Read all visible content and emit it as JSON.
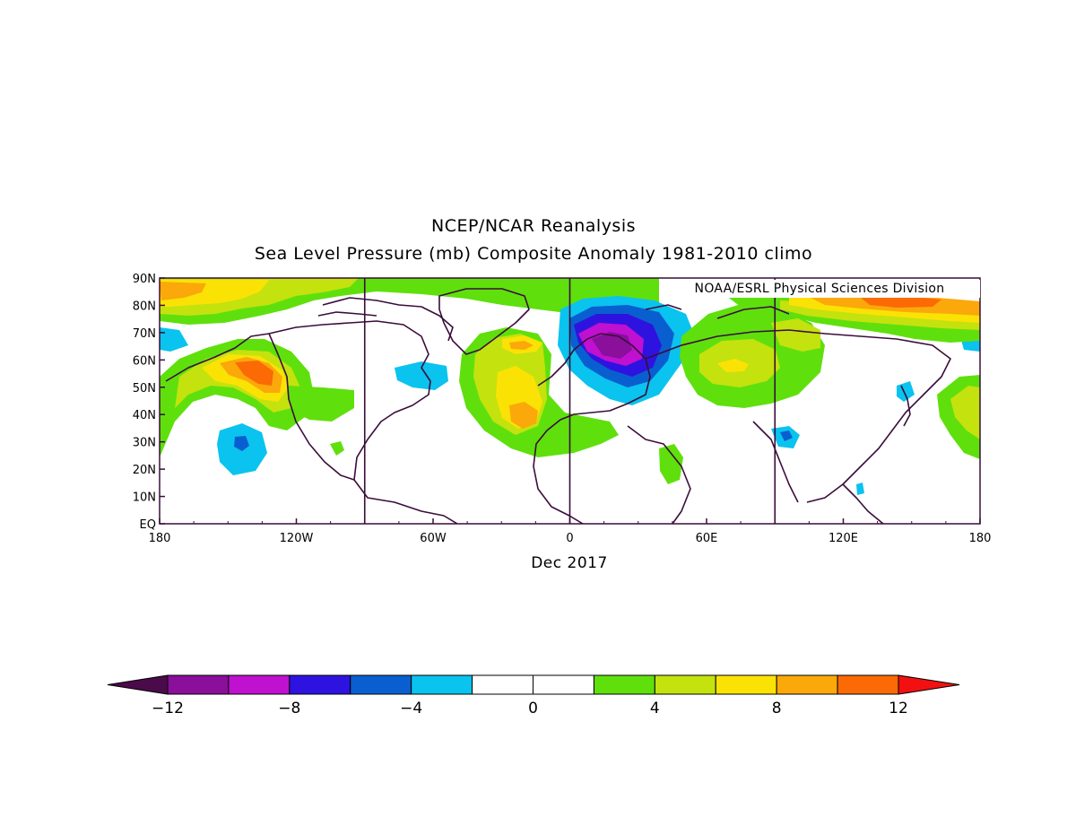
{
  "header": {
    "title": "NCEP/NCAR Reanalysis",
    "subtitle": "Sea Level Pressure (mb) Composite Anomaly 1981-2010 climo"
  },
  "credit": "NOAA/ESRL Physical Sciences Division",
  "period": "Dec 2017",
  "axes": {
    "lon_ticks": [
      "180",
      "120W",
      "60W",
      "0",
      "60E",
      "120E",
      "180"
    ],
    "lat_ticks": [
      "EQ",
      "10N",
      "20N",
      "30N",
      "40N",
      "50N",
      "60N",
      "70N",
      "80N",
      "90N"
    ],
    "lon_range": [
      -180,
      180
    ],
    "lat_range": [
      0,
      90
    ]
  },
  "colorbar": {
    "labels": [
      "-12",
      "-8",
      "-4",
      "0",
      "4",
      "8",
      "12"
    ],
    "colors": [
      "#4b0a4a",
      "#8a0f9a",
      "#c010d0",
      "#2e13e0",
      "#0a5fd0",
      "#0ac3ee",
      "#ffffff",
      "#ffffff",
      "#5fe00c",
      "#c4e20e",
      "#fbe205",
      "#fba80a",
      "#fb6a05",
      "#f31010"
    ]
  }
}
